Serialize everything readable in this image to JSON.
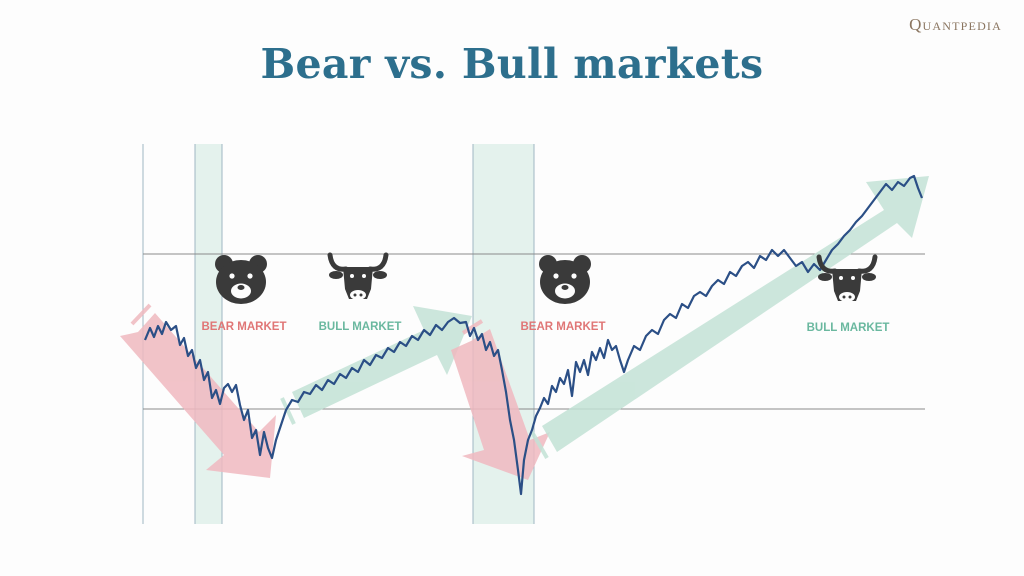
{
  "brand": "Quantpedia",
  "title": "Bear vs. Bull markets",
  "colors": {
    "title": "#2d6f8d",
    "price_line": "#2b4f86",
    "bear_arrow": "#f0b9bf",
    "bull_arrow": "#c3e2d6",
    "bear_label": "#e07676",
    "bull_label": "#6ab89f",
    "shade": "#d8ece6",
    "icon": "#3a3a3a"
  },
  "icons": [
    "bear-icon",
    "bull-icon",
    "bear-icon",
    "bull-icon"
  ],
  "labels": {
    "bear_1": "BEAR MARKET",
    "bull_1": "BULL MARKET",
    "bear_2": "BEAR MARKET",
    "bull_2": "BULL MARKET"
  }
}
